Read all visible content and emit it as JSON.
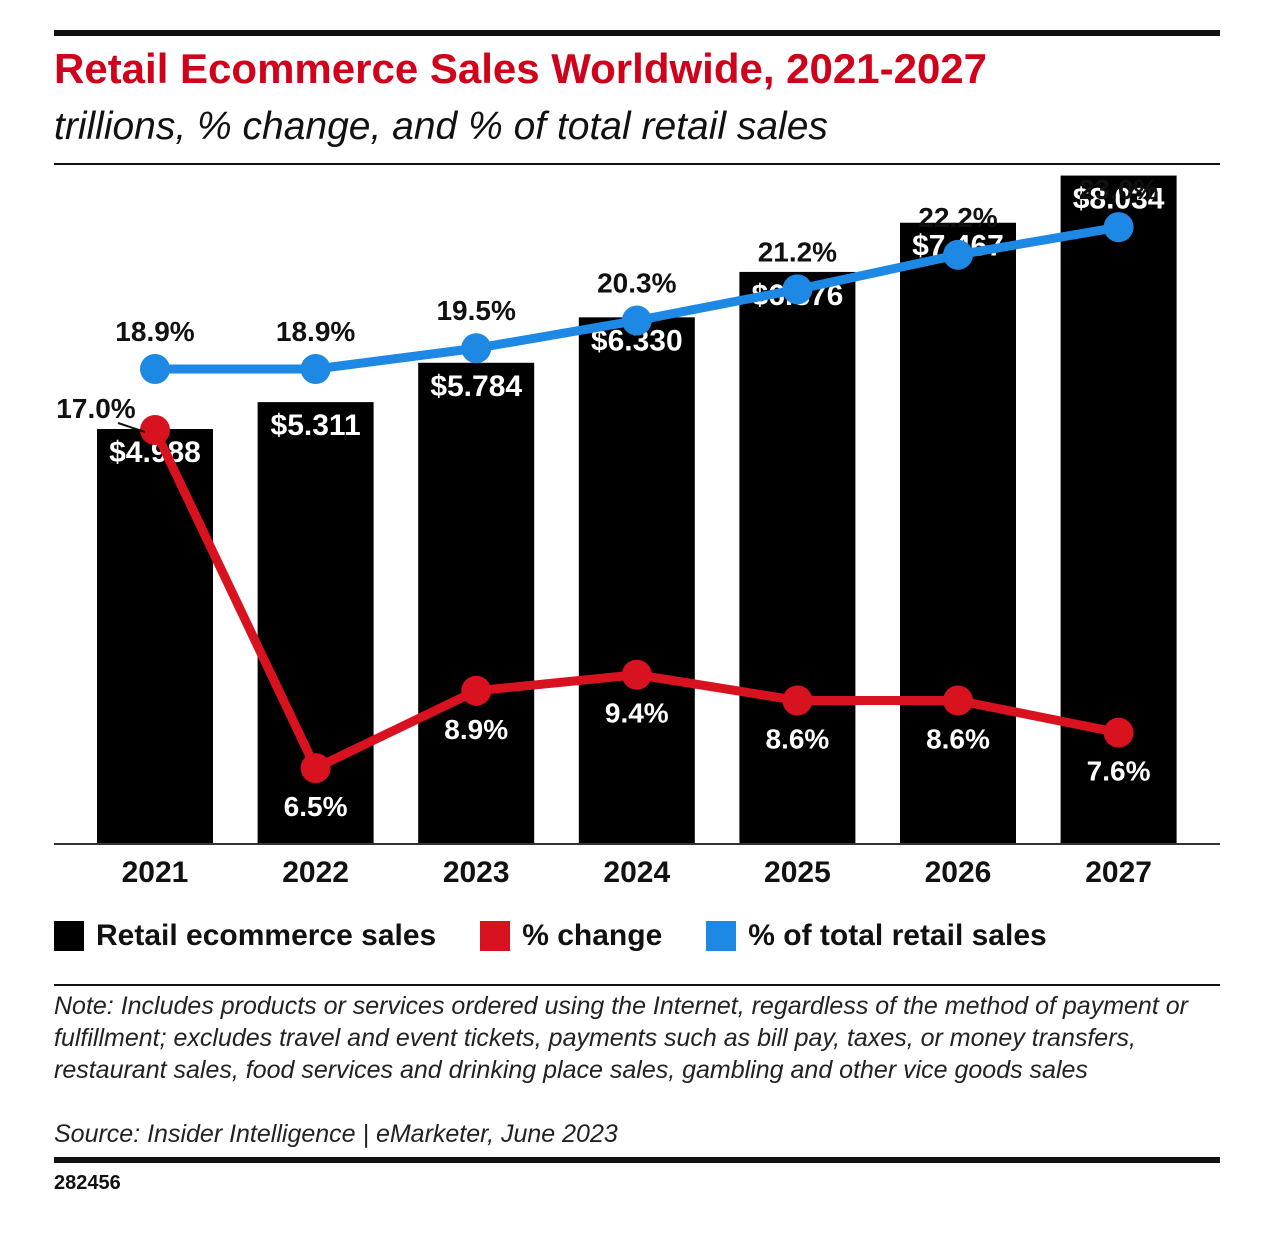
{
  "header": {
    "title": "Retail Ecommerce Sales Worldwide, 2021-2027",
    "subtitle": "trillions, % change, and % of total retail sales"
  },
  "chart_data": {
    "type": "bar",
    "categories": [
      "2021",
      "2022",
      "2023",
      "2024",
      "2025",
      "2026",
      "2027"
    ],
    "series": [
      {
        "name": "Retail ecommerce sales",
        "type": "bar",
        "color": "#000000",
        "values": [
          4.988,
          5.311,
          5.784,
          6.33,
          6.876,
          7.467,
          8.034
        ],
        "labels": [
          "$4.988",
          "$5.311",
          "$5.784",
          "$6.330",
          "$6.876",
          "$7.467",
          "$8.034"
        ]
      },
      {
        "name": "% change",
        "type": "line",
        "color": "#d8121f",
        "values": [
          17.0,
          6.5,
          8.9,
          9.4,
          8.6,
          8.6,
          7.6
        ],
        "labels": [
          "17.0%",
          "6.5%",
          "8.9%",
          "9.4%",
          "8.6%",
          "8.6%",
          "7.6%"
        ]
      },
      {
        "name": "% of total retail sales",
        "type": "line",
        "color": "#1e88e5",
        "values": [
          18.9,
          18.9,
          19.5,
          20.3,
          21.2,
          22.2,
          23.0
        ],
        "labels": [
          "18.9%",
          "18.9%",
          "19.5%",
          "20.3%",
          "21.2%",
          "22.2%",
          "23.0%"
        ]
      }
    ],
    "legend_position": "bottom-left",
    "grid": false
  },
  "legend": {
    "items": [
      {
        "label": "Retail ecommerce sales",
        "color": "#000000"
      },
      {
        "label": "% change",
        "color": "#d8121f"
      },
      {
        "label": "% of total retail sales",
        "color": "#1e88e5"
      }
    ]
  },
  "footer": {
    "note": "Note: Includes products or services ordered using the Internet, regardless of the method of payment or fulfillment; excludes travel and event tickets, payments such as bill pay, taxes, or money transfers, restaurant sales, food services and drinking place sales, gambling and other vice goods sales",
    "source": "Source: Insider Intelligence | eMarketer, June 2023",
    "chart_id": "282456"
  }
}
